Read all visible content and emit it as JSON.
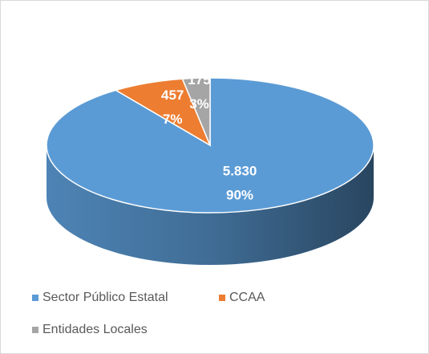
{
  "chart_data": {
    "type": "pie",
    "categories": [
      "Sector Público Estatal",
      "CCAA",
      "Entidades Locales"
    ],
    "values": [
      5830,
      457,
      175
    ],
    "value_labels": [
      "5.830",
      "457",
      "175"
    ],
    "percent_labels": [
      "90%",
      "7%",
      "3%"
    ],
    "colors": [
      "#5b9bd5",
      "#ed7d31",
      "#a5a5a5"
    ],
    "legend": "bottom"
  }
}
